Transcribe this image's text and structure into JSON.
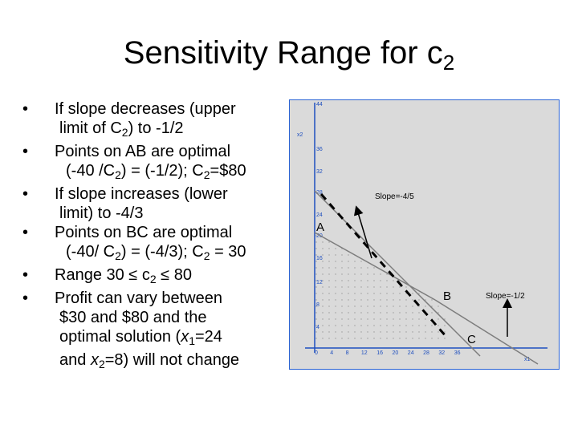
{
  "title": {
    "main": "Sensitivity Range for c",
    "sub": "2"
  },
  "bullets": [
    {
      "parts": [
        "If slope decreases (upper",
        "limit of C",
        "2",
        ") to -1/2"
      ]
    },
    {
      "parts": [
        "Points on AB are optimal",
        "(-40 /C",
        "2",
        ") = (-1/2); C",
        "2",
        "=$80"
      ]
    },
    {
      "parts": [
        "If slope increases (lower",
        "limit) to -4/3"
      ]
    },
    {
      "parts": [
        "Points on BC are optimal",
        "(-40/ C",
        "2",
        ") = (-4/3); C",
        "2",
        " = 30"
      ]
    },
    {
      "parts": [
        "Range 30 ≤ c",
        "2",
        " ≤ 80"
      ]
    },
    {
      "parts": [
        "Profit can vary between",
        "$30 and $80 and the",
        "optimal solution (",
        "x",
        "1",
        "=24",
        "and ",
        "x",
        "2",
        "=8) will not change"
      ]
    }
  ],
  "graph": {
    "colors": {
      "background": "#dadada",
      "border": "#2a63d4",
      "axis": "#1e4fbf",
      "tick_label": "#1e4fbf",
      "constraint": "#7d7d7d",
      "dash": "#000000",
      "arrow": "#000000"
    },
    "axis_labels": {
      "x": "x1",
      "y": "x2"
    },
    "x_ticks": [
      "0",
      "4",
      "8",
      "12",
      "16",
      "20",
      "24",
      "28",
      "32",
      "36"
    ],
    "y_ticks": [
      "44",
      "36",
      "32",
      "28",
      "24",
      "20",
      "16",
      "12",
      "8",
      "4"
    ],
    "points": {
      "A": "A",
      "B": "B",
      "C": "C"
    },
    "slope_labels": {
      "upper": "Slope=-4/5",
      "lower": "Slope=-1/2"
    }
  }
}
